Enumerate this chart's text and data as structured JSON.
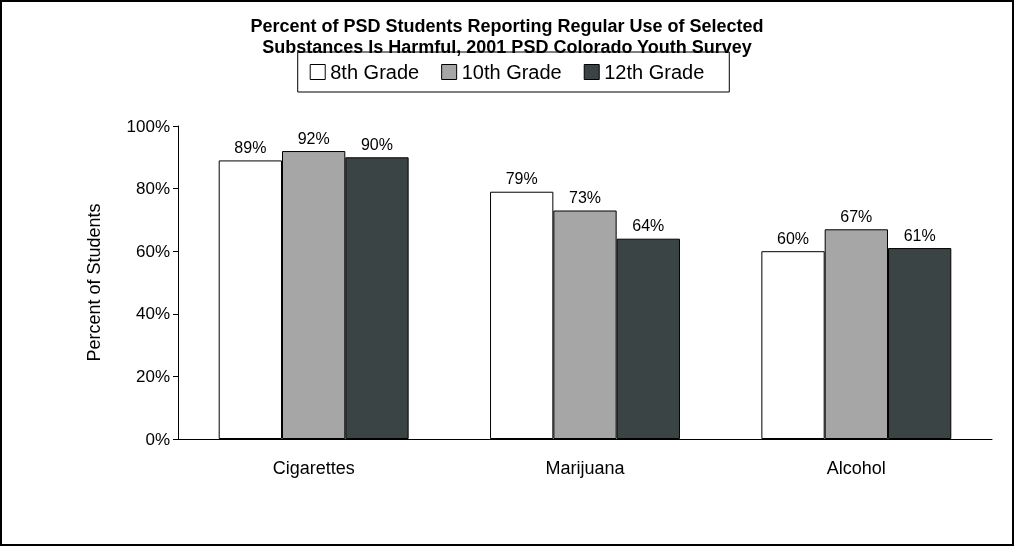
{
  "chart_data": {
    "type": "bar",
    "title": "Percent of PSD Students Reporting Regular Use of Selected\nSubstances Is Harmful, 2001 PSD Colorado Youth Survey",
    "ylabel": "Percent of Students",
    "categories": [
      "Cigarettes",
      "Marijuana",
      "Alcohol"
    ],
    "series": [
      {
        "name": "8th Grade",
        "color": "#ffffff",
        "values": [
          89,
          79,
          60
        ],
        "value_labels": [
          "89%",
          "79%",
          "60%"
        ]
      },
      {
        "name": "10th Grade",
        "color": "#a6a6a6",
        "values": [
          92,
          73,
          67
        ],
        "value_labels": [
          "92%",
          "73%",
          "67%"
        ]
      },
      {
        "name": "12th Grade",
        "color": "#3b4444",
        "values": [
          90,
          64,
          61
        ],
        "value_labels": [
          "90%",
          "64%",
          "61%"
        ]
      }
    ],
    "ylim": [
      0,
      100
    ],
    "yticks": [
      {
        "value": 0,
        "label": "0%"
      },
      {
        "value": 20,
        "label": "20%"
      },
      {
        "value": 40,
        "label": "40%"
      },
      {
        "value": 60,
        "label": "60%"
      },
      {
        "value": 80,
        "label": "80%"
      },
      {
        "value": 100,
        "label": "100%"
      }
    ],
    "grid": false,
    "legend": "top"
  }
}
